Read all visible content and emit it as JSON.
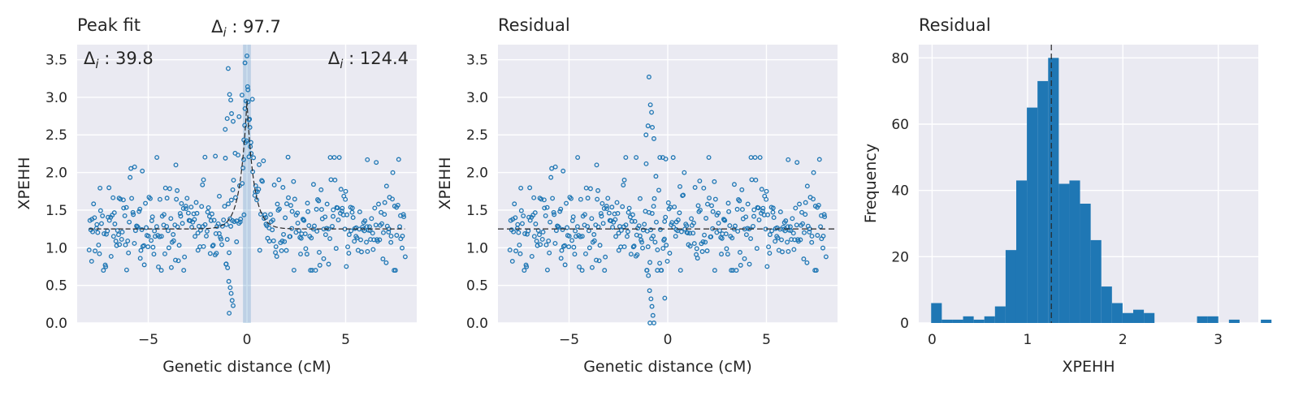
{
  "chart_data": [
    {
      "type": "scatter",
      "title": "Peak fit",
      "xlabel": "Genetic distance (cM)",
      "ylabel": "XPEHH",
      "xlim": [
        -8.6,
        8.6
      ],
      "ylim": [
        0,
        3.7
      ],
      "xticks": [
        -5,
        0,
        5
      ],
      "xtick_labels": [
        "−5",
        "0",
        "5"
      ],
      "yticks": [
        0,
        0.5,
        1,
        1.5,
        2,
        2.5,
        3,
        3.5
      ],
      "ytick_labels": [
        "0.0",
        "0.5",
        "1.0",
        "1.5",
        "2.0",
        "2.5",
        "3.0",
        "3.5"
      ],
      "baseline": 1.25,
      "peak_position": 0,
      "peak_height": 2.95,
      "highlight_band": [
        -0.2,
        0.2
      ],
      "annotations": [
        {
          "text": "Δi : 39.8",
          "position": "top-left"
        },
        {
          "text": "Δi : 97.7",
          "position": "top-center"
        },
        {
          "text": "Δi : 124.4",
          "position": "top-right"
        }
      ],
      "points_note_marker": "open-circle",
      "grid": true
    },
    {
      "type": "scatter",
      "title": "Residual",
      "xlabel": "Genetic distance (cM)",
      "ylabel": "XPEHH",
      "xlim": [
        -8.6,
        8.6
      ],
      "ylim": [
        0,
        3.7
      ],
      "xticks": [
        -5,
        0,
        5
      ],
      "xtick_labels": [
        "−5",
        "0",
        "5"
      ],
      "yticks": [
        0,
        0.5,
        1,
        1.5,
        2,
        2.5,
        3,
        3.5
      ],
      "ytick_labels": [
        "0.0",
        "0.5",
        "1.0",
        "1.5",
        "2.0",
        "2.5",
        "3.0",
        "3.5"
      ],
      "baseline": 1.25,
      "grid": true
    },
    {
      "type": "bar",
      "title": "Residual",
      "xlabel": "XPEHH",
      "ylabel": "Frequency",
      "xlim": [
        -0.14,
        3.42
      ],
      "ylim": [
        0,
        84
      ],
      "xticks": [
        0,
        1,
        2,
        3
      ],
      "xtick_labels": [
        "0",
        "1",
        "2",
        "3"
      ],
      "yticks": [
        0,
        20,
        40,
        60,
        80
      ],
      "ytick_labels": [
        "0",
        "20",
        "40",
        "60",
        "80"
      ],
      "bin_start": -0.01,
      "bin_width": 0.1115,
      "values": [
        6,
        1,
        1,
        2,
        1,
        2,
        5,
        22,
        43,
        65,
        73,
        80,
        42,
        43,
        36,
        25,
        11,
        6,
        3,
        4,
        3,
        0,
        0,
        0,
        0,
        2,
        2,
        0,
        1,
        0,
        0,
        1
      ],
      "reference_line": 1.25,
      "grid": true
    }
  ]
}
